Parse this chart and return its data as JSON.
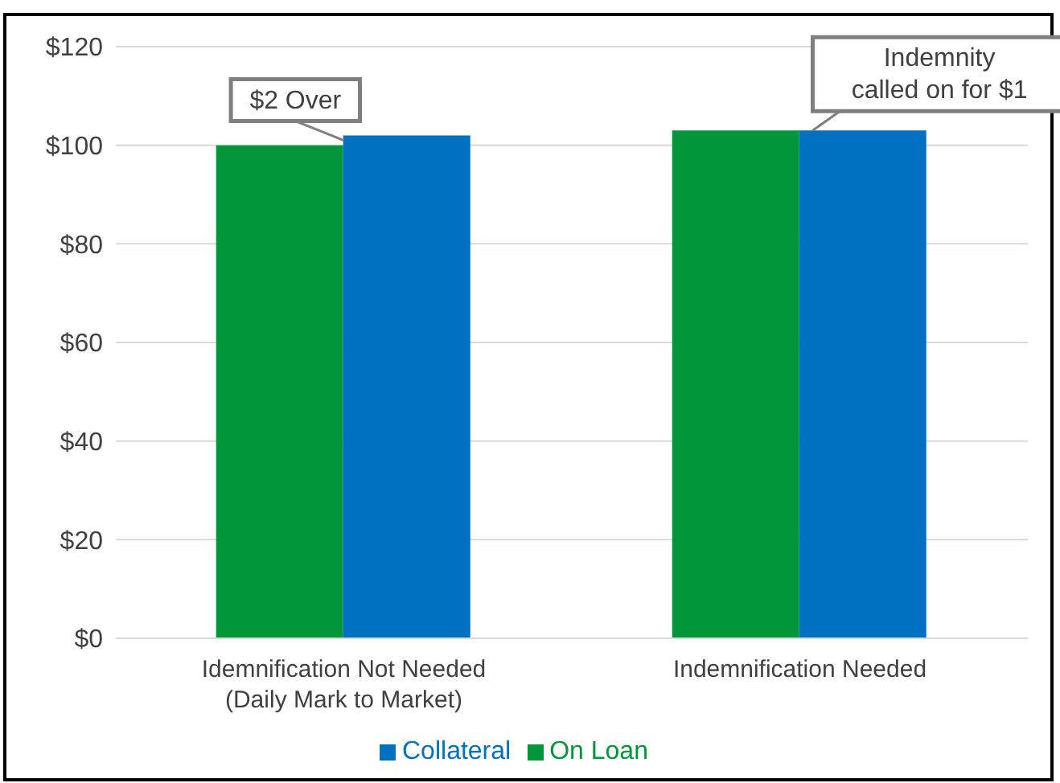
{
  "chart_data": {
    "type": "bar",
    "categories": [
      "Idemnification Not Needed\n(Daily Mark to Market)",
      "Indemnification Needed"
    ],
    "series": [
      {
        "name": "On Loan",
        "color": "#00973a",
        "values": [
          100,
          103
        ]
      },
      {
        "name": "Collateral",
        "color": "#0070c0",
        "values": [
          102,
          103
        ]
      }
    ],
    "ylim": [
      0,
      120
    ],
    "yticks": [
      {
        "value": 0,
        "label": "$0"
      },
      {
        "value": 20,
        "label": "$20"
      },
      {
        "value": 40,
        "label": "$40"
      },
      {
        "value": 60,
        "label": "$60"
      },
      {
        "value": 80,
        "label": "$80"
      },
      {
        "value": 100,
        "label": "$100"
      },
      {
        "value": 120,
        "label": "$120"
      }
    ],
    "annotations": [
      {
        "text": "$2 Over",
        "x": "Idemnification Not Needed\n(Daily Mark to Market)",
        "y": 101
      },
      {
        "text": "Indemnity\ncalled on for $1",
        "x": "Indemnification Needed",
        "y": 103
      }
    ],
    "grid": "y",
    "legend": "bottom"
  }
}
